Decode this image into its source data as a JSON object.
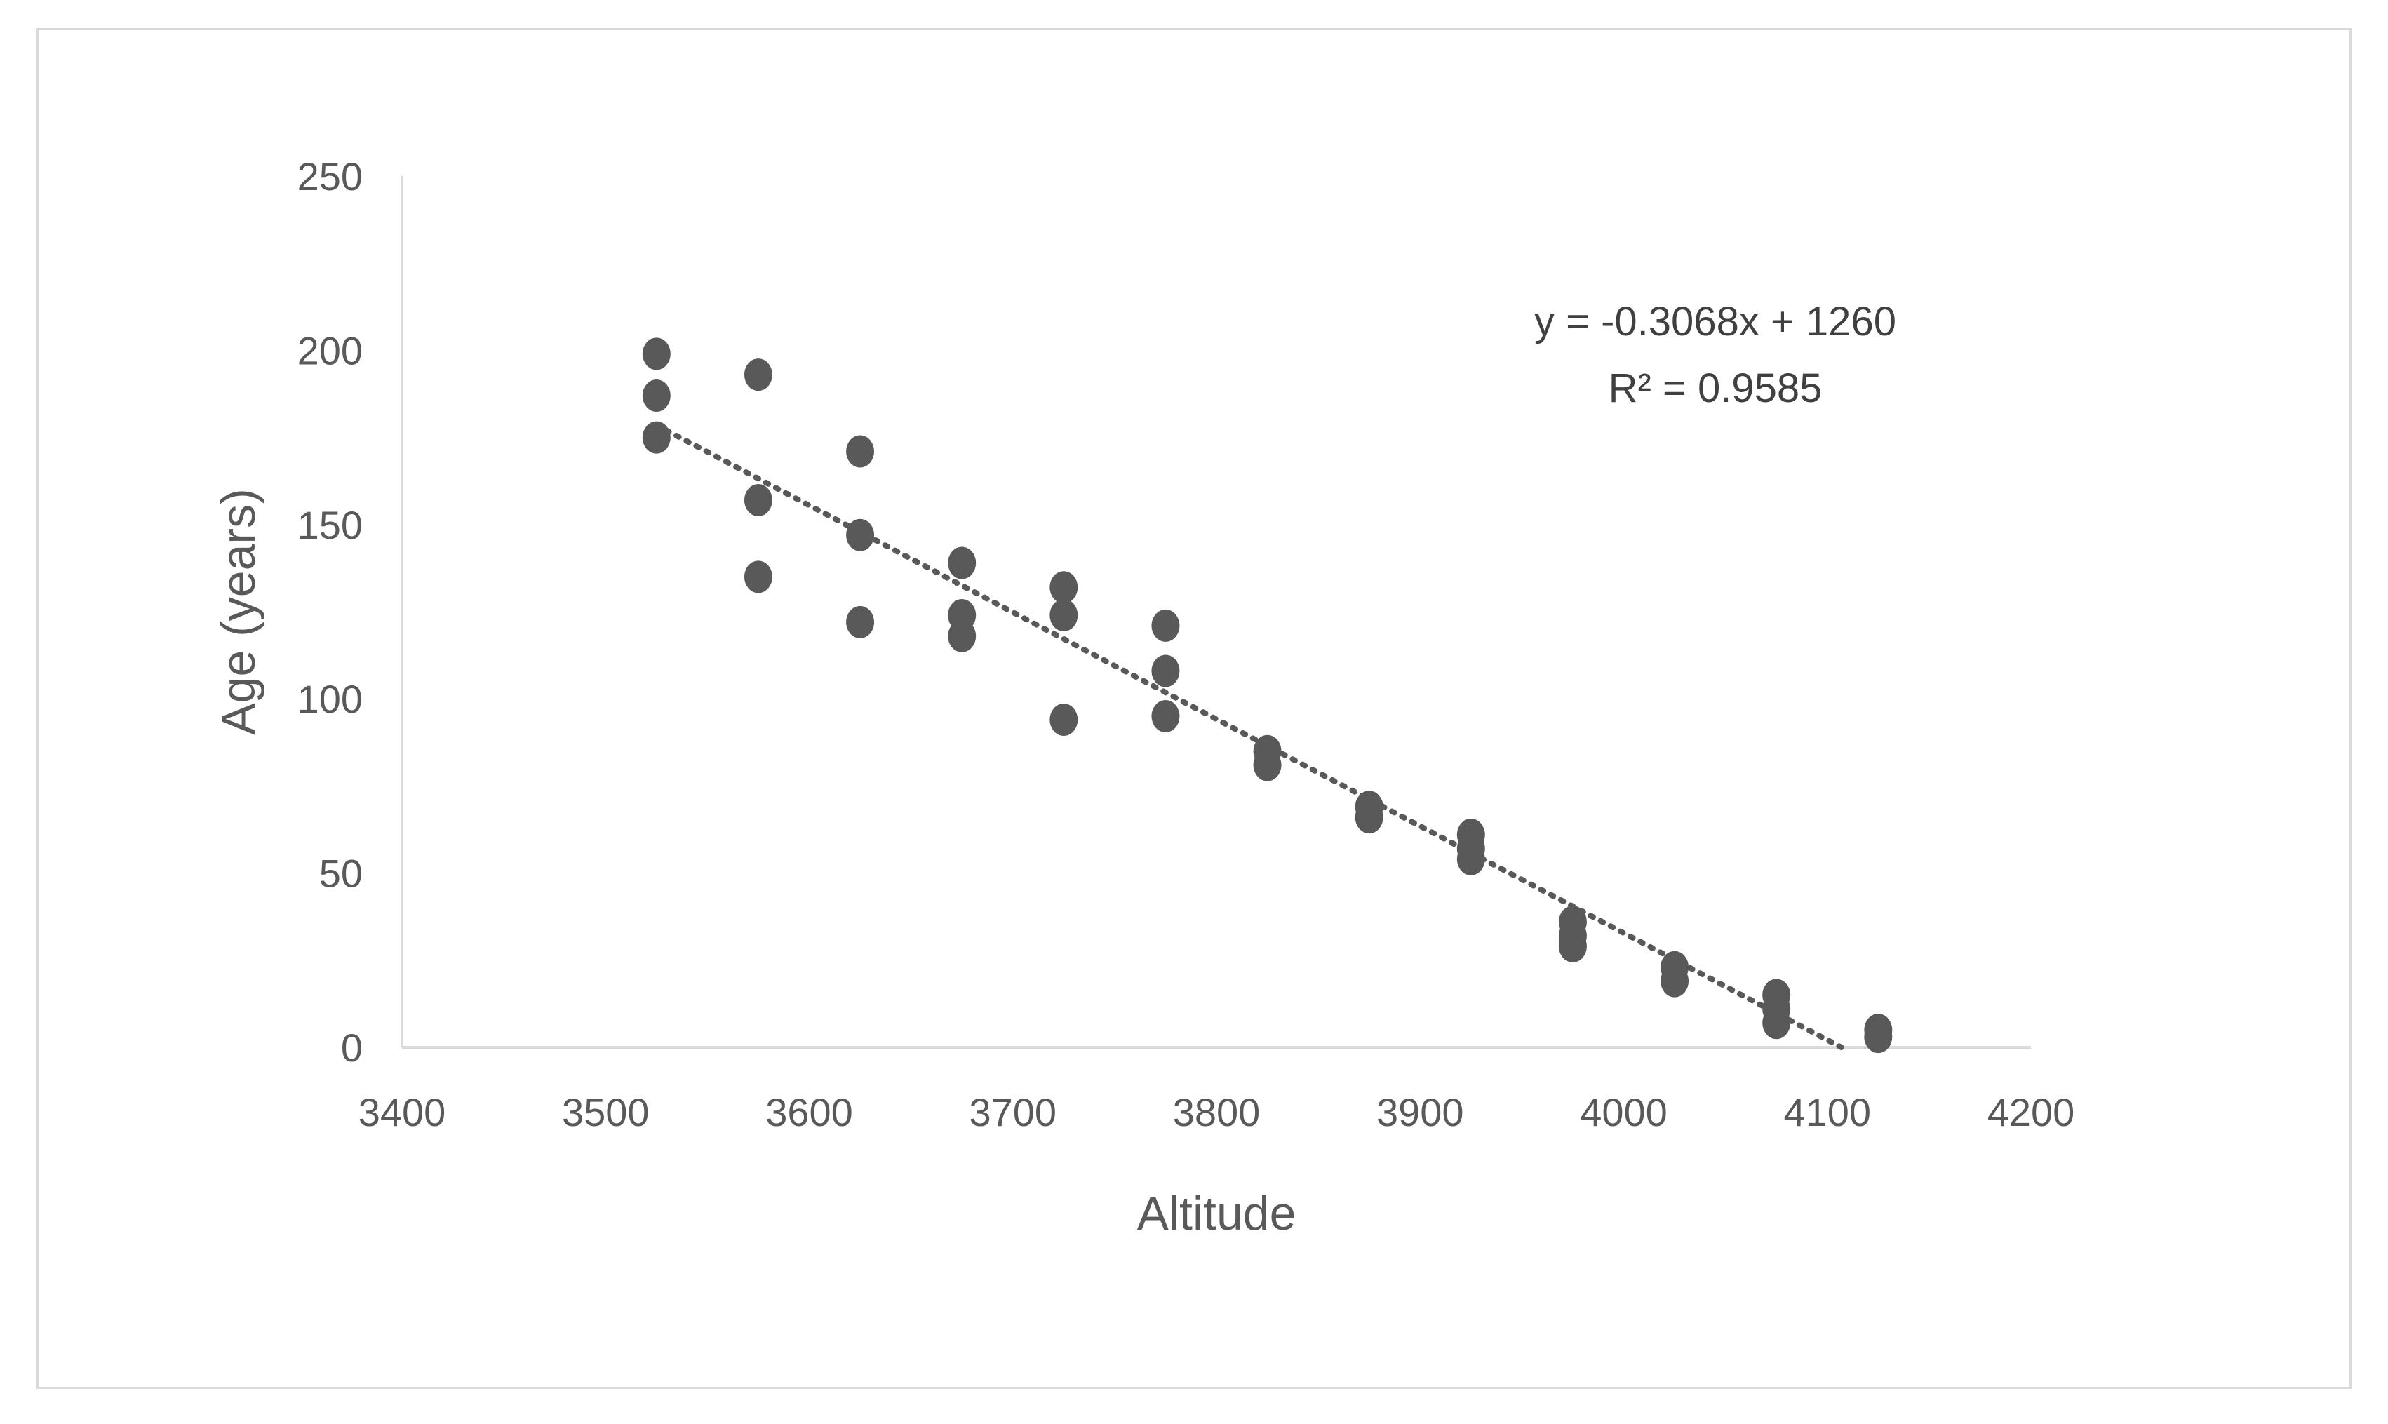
{
  "chart_data": {
    "type": "scatter",
    "xlabel": "Altitude",
    "ylabel": "Age (years)",
    "xlim": [
      3400,
      4200
    ],
    "ylim": [
      0,
      250
    ],
    "x_ticks": [
      3400,
      3500,
      3600,
      3700,
      3800,
      3900,
      4000,
      4100,
      4200
    ],
    "y_ticks": [
      0,
      50,
      100,
      150,
      200,
      250
    ],
    "grid": false,
    "legend": "none",
    "marker_color": "#595959",
    "axis_color": "#d9d9d9",
    "trendline": {
      "type": "linear",
      "slope": -0.3068,
      "intercept": 1260,
      "style": "dotted",
      "color": "#595959",
      "equation_label": "y = -0.3068x + 1260",
      "r2_label": "R² = 0.9585"
    },
    "series": [
      {
        "points": [
          {
            "x": 3525,
            "y": 199
          },
          {
            "x": 3525,
            "y": 187
          },
          {
            "x": 3525,
            "y": 175
          },
          {
            "x": 3575,
            "y": 193
          },
          {
            "x": 3575,
            "y": 157
          },
          {
            "x": 3575,
            "y": 135
          },
          {
            "x": 3625,
            "y": 171
          },
          {
            "x": 3625,
            "y": 147
          },
          {
            "x": 3625,
            "y": 122
          },
          {
            "x": 3675,
            "y": 139
          },
          {
            "x": 3675,
            "y": 124
          },
          {
            "x": 3675,
            "y": 118
          },
          {
            "x": 3725,
            "y": 132
          },
          {
            "x": 3725,
            "y": 124
          },
          {
            "x": 3725,
            "y": 94
          },
          {
            "x": 3775,
            "y": 121
          },
          {
            "x": 3775,
            "y": 108
          },
          {
            "x": 3775,
            "y": 95
          },
          {
            "x": 3825,
            "y": 85
          },
          {
            "x": 3825,
            "y": 81
          },
          {
            "x": 3875,
            "y": 69
          },
          {
            "x": 3875,
            "y": 66
          },
          {
            "x": 3925,
            "y": 61
          },
          {
            "x": 3925,
            "y": 57
          },
          {
            "x": 3925,
            "y": 54
          },
          {
            "x": 3975,
            "y": 36
          },
          {
            "x": 3975,
            "y": 32
          },
          {
            "x": 3975,
            "y": 29
          },
          {
            "x": 4025,
            "y": 23
          },
          {
            "x": 4025,
            "y": 19
          },
          {
            "x": 4075,
            "y": 15
          },
          {
            "x": 4075,
            "y": 11
          },
          {
            "x": 4075,
            "y": 7
          },
          {
            "x": 4125,
            "y": 5
          },
          {
            "x": 4125,
            "y": 3
          }
        ]
      }
    ]
  }
}
